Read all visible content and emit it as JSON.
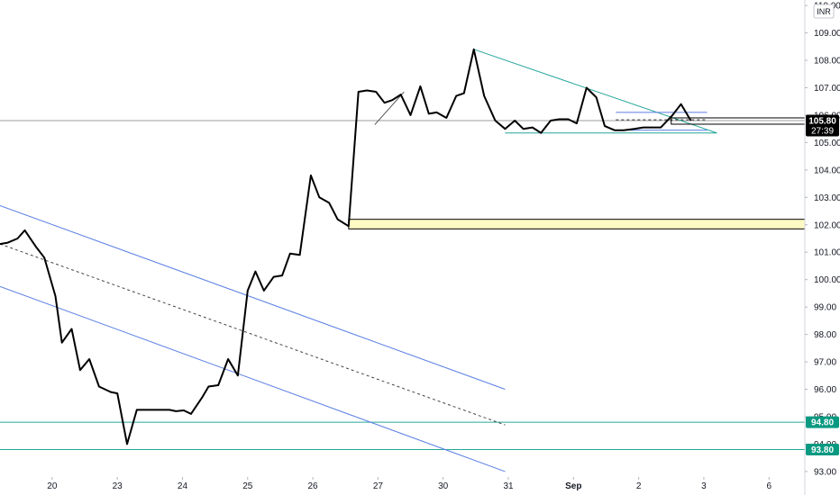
{
  "currency_label": "INR",
  "chart_data": {
    "type": "line",
    "ylim": [
      92.8,
      110.2
    ],
    "y_ticks": [
      93.0,
      94.0,
      95.0,
      96.0,
      97.0,
      98.0,
      99.0,
      100.0,
      101.0,
      102.0,
      103.0,
      104.0,
      105.0,
      106.0,
      107.0,
      108.0,
      109.0,
      110.0
    ],
    "y_tick_labels": [
      "93.00",
      "94.00",
      "95.00",
      "96.00",
      "97.00",
      "98.00",
      "99.00",
      "100.00",
      "101.00",
      "102.00",
      "103.00",
      "104.00",
      "105.00",
      "106.00",
      "107.00",
      "108.00",
      "109.00",
      "110.00"
    ],
    "x_ticks": [
      {
        "label": "20",
        "pos": 0.8
      },
      {
        "label": "23",
        "pos": 1.8
      },
      {
        "label": "24",
        "pos": 2.8
      },
      {
        "label": "25",
        "pos": 3.8
      },
      {
        "label": "26",
        "pos": 4.8
      },
      {
        "label": "27",
        "pos": 5.8
      },
      {
        "label": "30",
        "pos": 6.8
      },
      {
        "label": "31",
        "pos": 7.8
      },
      {
        "label": "Sep",
        "pos": 8.8,
        "bold": true
      },
      {
        "label": "2",
        "pos": 9.8
      },
      {
        "label": "3",
        "pos": 10.8
      },
      {
        "label": "6",
        "pos": 11.8
      }
    ],
    "xlim": [
      0,
      12.35
    ],
    "series": [
      {
        "color": "#000000",
        "points": [
          [
            0.0,
            101.3
          ],
          [
            0.12,
            101.35
          ],
          [
            0.27,
            101.5
          ],
          [
            0.38,
            101.8
          ],
          [
            0.55,
            101.2
          ],
          [
            0.68,
            100.8
          ],
          [
            0.85,
            99.4
          ],
          [
            0.95,
            97.7
          ],
          [
            1.1,
            98.2
          ],
          [
            1.23,
            96.7
          ],
          [
            1.37,
            97.1
          ],
          [
            1.52,
            96.1
          ],
          [
            1.7,
            95.9
          ],
          [
            1.8,
            95.85
          ],
          [
            1.95,
            94.0
          ],
          [
            2.1,
            95.25
          ],
          [
            2.43,
            95.25
          ],
          [
            2.6,
            95.25
          ],
          [
            2.7,
            95.2
          ],
          [
            2.82,
            95.23
          ],
          [
            2.93,
            95.1
          ],
          [
            3.1,
            95.7
          ],
          [
            3.2,
            96.1
          ],
          [
            3.35,
            96.15
          ],
          [
            3.5,
            97.1
          ],
          [
            3.65,
            96.5
          ],
          [
            3.8,
            99.6
          ],
          [
            3.92,
            100.3
          ],
          [
            4.05,
            99.6
          ],
          [
            4.2,
            100.1
          ],
          [
            4.33,
            100.15
          ],
          [
            4.45,
            100.95
          ],
          [
            4.6,
            100.9
          ],
          [
            4.77,
            103.8
          ],
          [
            4.9,
            103.0
          ],
          [
            5.05,
            102.8
          ],
          [
            5.18,
            102.2
          ],
          [
            5.35,
            101.95
          ],
          [
            5.5,
            106.85
          ],
          [
            5.63,
            106.9
          ],
          [
            5.77,
            106.85
          ],
          [
            5.9,
            106.45
          ],
          [
            6.02,
            106.55
          ],
          [
            6.15,
            106.75
          ],
          [
            6.3,
            106.0
          ],
          [
            6.45,
            107.05
          ],
          [
            6.58,
            106.05
          ],
          [
            6.7,
            106.1
          ],
          [
            6.85,
            105.9
          ],
          [
            7.0,
            106.7
          ],
          [
            7.12,
            106.8
          ],
          [
            7.27,
            108.4
          ],
          [
            7.43,
            106.7
          ],
          [
            7.6,
            105.8
          ],
          [
            7.75,
            105.5
          ],
          [
            7.9,
            105.8
          ],
          [
            8.03,
            105.5
          ],
          [
            8.17,
            105.55
          ],
          [
            8.3,
            105.35
          ],
          [
            8.45,
            105.8
          ],
          [
            8.58,
            105.85
          ],
          [
            8.72,
            105.85
          ],
          [
            8.85,
            105.7
          ],
          [
            9.0,
            107.0
          ],
          [
            9.15,
            106.65
          ],
          [
            9.28,
            105.6
          ],
          [
            9.43,
            105.45
          ],
          [
            9.57,
            105.45
          ],
          [
            9.73,
            105.5
          ],
          [
            9.87,
            105.55
          ],
          [
            10.0,
            105.55
          ],
          [
            10.14,
            105.55
          ],
          [
            10.32,
            106.0
          ],
          [
            10.45,
            106.4
          ],
          [
            10.6,
            105.8
          ]
        ]
      }
    ],
    "drawings": {
      "channel_upper": {
        "from": [
          0.0,
          102.7
        ],
        "to": [
          7.75,
          96.0
        ],
        "color": "#5b7fe3"
      },
      "channel_middle": {
        "from": [
          0.0,
          101.3
        ],
        "to": [
          7.75,
          94.7
        ],
        "color": "#444444",
        "dashed": true
      },
      "channel_lower": {
        "from": [
          0.0,
          99.75
        ],
        "to": [
          7.75,
          93.0
        ],
        "color": "#5b7fe3"
      },
      "triangle_upper": {
        "from": [
          7.27,
          108.4
        ],
        "to": [
          11.0,
          105.35
        ],
        "color": "#26a69a"
      },
      "triangle_lower": {
        "from": [
          7.75,
          105.35
        ],
        "to": [
          11.0,
          105.35
        ],
        "color": "#26a69a"
      },
      "trend_stub": {
        "from": [
          5.75,
          105.65
        ],
        "to": [
          6.2,
          106.85
        ],
        "color": "#555555"
      },
      "mini_line_top": {
        "from": [
          9.45,
          106.1
        ],
        "to": [
          10.85,
          106.1
        ],
        "color": "#5b7fe3"
      },
      "mini_line_bottom": {
        "from": [
          9.45,
          105.45
        ],
        "to": [
          10.85,
          105.45
        ],
        "color": "#5b7fe3"
      },
      "projection_dashed": {
        "from": [
          9.45,
          105.83
        ],
        "to": [
          10.85,
          105.83
        ],
        "color": "#333333",
        "dashed": true
      },
      "zone": {
        "x_from": 5.35,
        "y_top": 102.2,
        "y_bottom": 101.85,
        "fill": "#fff9c4",
        "stroke": "#000000"
      },
      "current_box": {
        "x_from": 10.3,
        "y_top": 105.9,
        "y_bottom": 105.67
      },
      "h_line_last": {
        "y": 105.8,
        "color": "#9e9e9e"
      },
      "h_line_support_1": {
        "y": 94.8,
        "color": "#26a69a"
      },
      "h_line_support_2": {
        "y": 93.8,
        "color": "#26a69a"
      }
    },
    "price_badges": [
      {
        "value": "105.80",
        "sub": "27:39",
        "y": 105.8,
        "color": "#000000"
      },
      {
        "value": "94.80",
        "y": 94.8,
        "color": "#089981"
      },
      {
        "value": "93.80",
        "y": 93.8,
        "color": "#089981"
      }
    ]
  }
}
